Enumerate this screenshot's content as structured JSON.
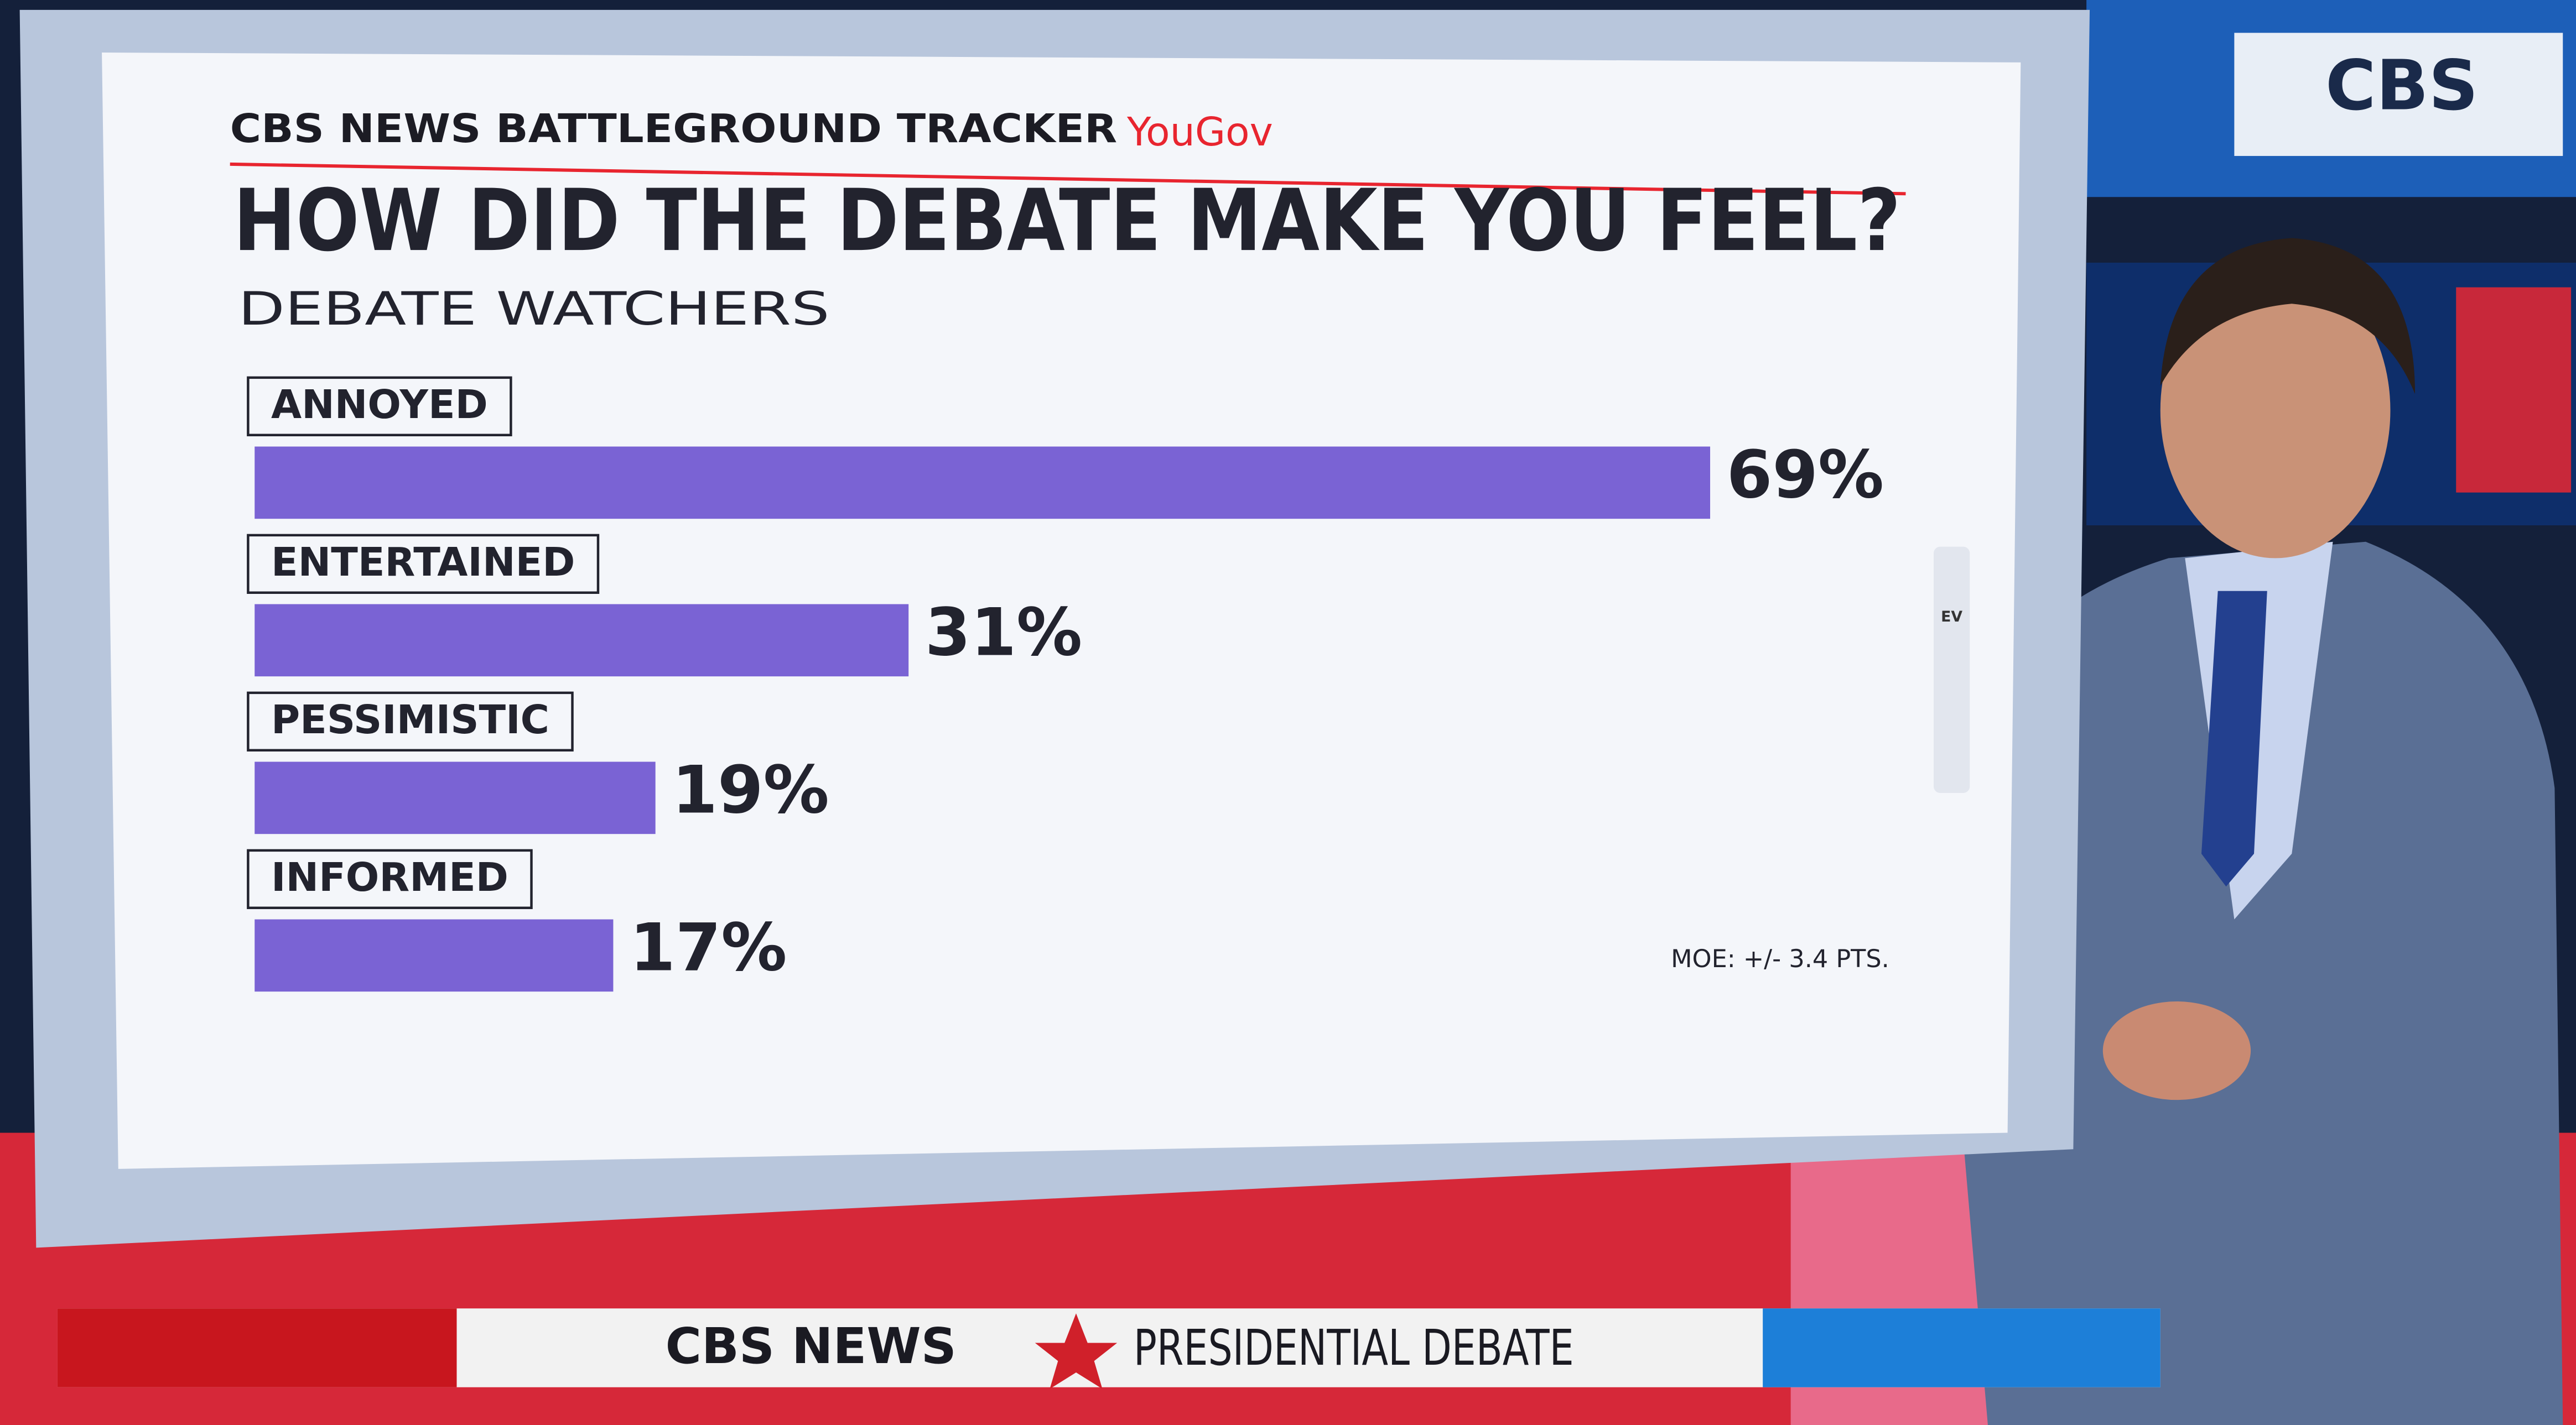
{
  "header": {
    "source": "CBS NEWS BATTLEGROUND TRACKER",
    "partner": "YouGov"
  },
  "chart_data": {
    "type": "bar",
    "orientation": "horizontal",
    "title": "HOW DID THE DEBATE MAKE YOU FEEL?",
    "subtitle": "DEBATE WATCHERS",
    "categories": [
      "ANNOYED",
      "ENTERTAINED",
      "PESSIMISTIC",
      "INFORMED"
    ],
    "values": [
      69,
      31,
      19,
      17
    ],
    "value_labels": [
      "69%",
      "31%",
      "19%",
      "17%"
    ],
    "color": "#7a63d4",
    "note": "MOE: +/- 3.4 PTS."
  },
  "sidebar": {
    "icon_label": "EV"
  },
  "banner": {
    "network": "CBS NEWS",
    "program": "PRESIDENTIAL DEBATE"
  },
  "corner_logo": "CBS"
}
